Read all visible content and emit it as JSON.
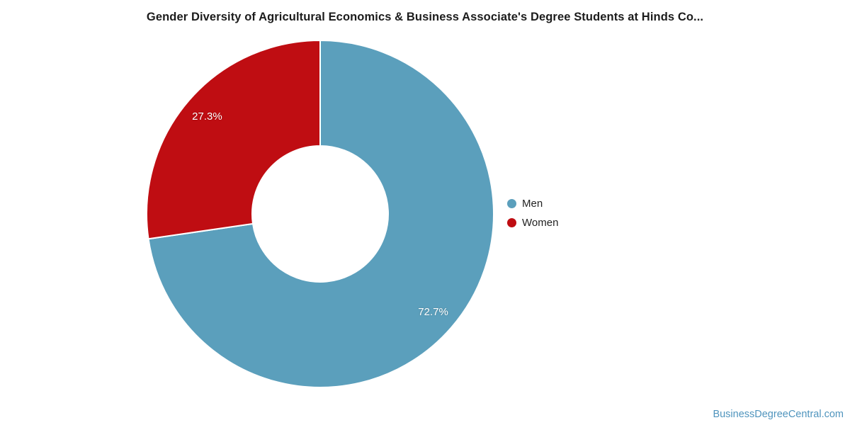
{
  "chart_data": {
    "type": "pie",
    "subtype": "donut",
    "title": "Gender Diversity of Agricultural Economics & Business Associate's Degree Students at Hinds Co...",
    "slices": [
      {
        "label": "Men",
        "value": 72.7,
        "display": "72.7%",
        "color": "#5b9fbc"
      },
      {
        "label": "Women",
        "value": 27.3,
        "display": "27.3%",
        "color": "#bf0d12"
      }
    ],
    "total": 100,
    "start_angle_deg": 0,
    "direction": "clockwise",
    "labels_inside": true,
    "label_color": "#ffffff",
    "legend_position": "right-middle",
    "background_color": "#ffffff"
  },
  "watermark": {
    "text": "BusinessDegreeCentral.com",
    "color": "#4f94bd"
  }
}
